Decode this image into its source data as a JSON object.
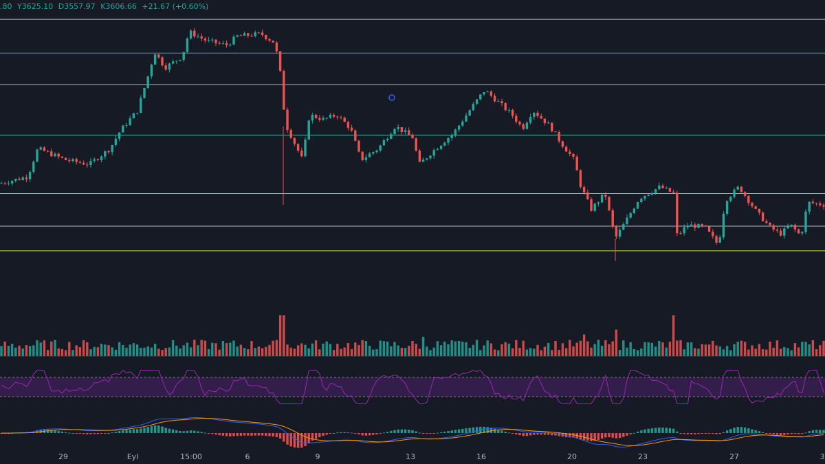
{
  "ohlc_legend": {
    "open": ".80",
    "high": "Y3625.10",
    "low": "D3557.97",
    "close": "K3606.66",
    "change": "+21.67 (+0.60%)"
  },
  "colors": {
    "background": "#161a25",
    "up": "#26a69a",
    "down": "#ef5350",
    "rsi_line": "#9c27b0",
    "rsi_band": "#3b1f55",
    "macd_line": "#2962ff",
    "signal_line": "#ff9800"
  },
  "chart_data": {
    "type": "candlestick",
    "price_range": [
      2650,
      3950
    ],
    "x_ticks": [
      "29",
      "Eyl",
      "15:00",
      "6",
      "9",
      "13",
      "16",
      "20",
      "23",
      "27",
      "3"
    ],
    "horizontal_levels": [
      {
        "price": 3925,
        "color": "#b2b5be"
      },
      {
        "price": 3775,
        "color": "#5d8fa8"
      },
      {
        "price": 3635,
        "color": "#b2b5be"
      },
      {
        "price": 3410,
        "color": "#4db6ac"
      },
      {
        "price": 3150,
        "color": "#8bc34a"
      },
      {
        "price": 3005,
        "color": "#b2b5be"
      },
      {
        "price": 2895,
        "color": "#cddc39"
      }
    ],
    "close_path": [
      [
        0,
        3195
      ],
      [
        40,
        3225
      ],
      [
        55,
        3350
      ],
      [
        95,
        3300
      ],
      [
        130,
        3280
      ],
      [
        160,
        3350
      ],
      [
        175,
        3430
      ],
      [
        200,
        3520
      ],
      [
        215,
        3670
      ],
      [
        225,
        3780
      ],
      [
        240,
        3710
      ],
      [
        265,
        3760
      ],
      [
        275,
        3870
      ],
      [
        300,
        3830
      ],
      [
        330,
        3810
      ],
      [
        345,
        3850
      ],
      [
        380,
        3860
      ],
      [
        400,
        3820
      ],
      [
        408,
        3680
      ],
      [
        415,
        3460
      ],
      [
        440,
        3300
      ],
      [
        450,
        3500
      ],
      [
        470,
        3480
      ],
      [
        490,
        3500
      ],
      [
        510,
        3440
      ],
      [
        525,
        3300
      ],
      [
        550,
        3350
      ],
      [
        575,
        3450
      ],
      [
        600,
        3400
      ],
      [
        610,
        3280
      ],
      [
        630,
        3340
      ],
      [
        660,
        3420
      ],
      [
        690,
        3550
      ],
      [
        705,
        3610
      ],
      [
        720,
        3570
      ],
      [
        745,
        3500
      ],
      [
        760,
        3440
      ],
      [
        775,
        3520
      ],
      [
        800,
        3450
      ],
      [
        815,
        3380
      ],
      [
        835,
        3300
      ],
      [
        845,
        3180
      ],
      [
        860,
        3080
      ],
      [
        880,
        3150
      ],
      [
        895,
        2950
      ],
      [
        905,
        3000
      ],
      [
        930,
        3130
      ],
      [
        960,
        3180
      ],
      [
        980,
        3150
      ],
      [
        985,
        2960
      ],
      [
        1000,
        3010
      ],
      [
        1025,
        3000
      ],
      [
        1045,
        2920
      ],
      [
        1055,
        3120
      ],
      [
        1075,
        3180
      ],
      [
        1100,
        3070
      ],
      [
        1120,
        3000
      ],
      [
        1135,
        2970
      ],
      [
        1150,
        3010
      ],
      [
        1165,
        2960
      ],
      [
        1175,
        3110
      ],
      [
        1200,
        3100
      ]
    ],
    "volume_spikes": [
      {
        "x": 410,
        "ratio": 0.85
      },
      {
        "x": 895,
        "ratio": 0.55
      },
      {
        "x": 980,
        "ratio": 0.85
      },
      {
        "x": 615,
        "ratio": 0.4
      },
      {
        "x": 850,
        "ratio": 0.45
      }
    ],
    "rsi_band": [
      30,
      70
    ],
    "grid": false
  }
}
